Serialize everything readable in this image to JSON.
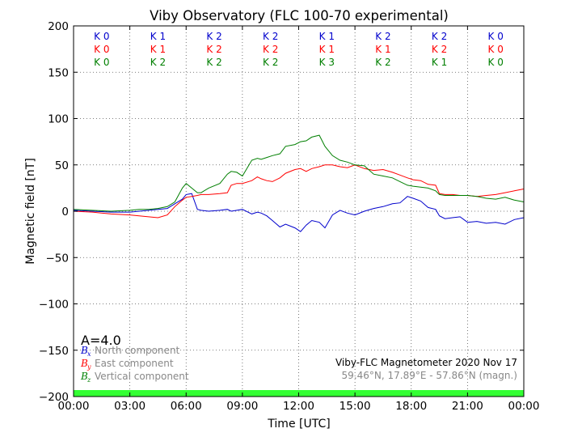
{
  "chart_data": {
    "type": "line",
    "title": "Viby Observatory (FLC 100-70 experimental)",
    "xlabel": "Time [UTC]",
    "ylabel": "Magnetic field [nT]",
    "xlim": [
      0,
      24
    ],
    "ylim": [
      -200,
      200
    ],
    "grid": true,
    "x_ticks": [
      0,
      3,
      6,
      9,
      12,
      15,
      18,
      21,
      24
    ],
    "x_tick_labels": [
      "00:00",
      "03:00",
      "06:00",
      "09:00",
      "12:00",
      "15:00",
      "18:00",
      "21:00",
      "00:00"
    ],
    "y_ticks": [
      200,
      150,
      100,
      50,
      0,
      -50,
      -100,
      -150,
      -200
    ],
    "y_tick_labels": [
      "200",
      "150",
      "100",
      "50",
      "0",
      "−50",
      "−100",
      "−150",
      "−200"
    ],
    "series": [
      {
        "name": "North component",
        "symbol": "B",
        "subscript": "x",
        "color": "#0000cc",
        "x": [
          0,
          1,
          2,
          3,
          3.5,
          4,
          4.5,
          5,
          5.4,
          5.8,
          6.0,
          6.3,
          6.6,
          6.8,
          7.2,
          7.8,
          8.2,
          8.4,
          8.7,
          9.0,
          9.5,
          9.8,
          10.0,
          10.3,
          10.6,
          11.0,
          11.3,
          11.8,
          12.1,
          12.4,
          12.7,
          13.1,
          13.4,
          13.8,
          14.2,
          14.6,
          15.0,
          15.5,
          16.0,
          16.5,
          17.0,
          17.4,
          17.8,
          18.1,
          18.5,
          18.9,
          19.3,
          19.5,
          19.8,
          20.2,
          20.6,
          21.0,
          21.5,
          22.0,
          22.5,
          23.0,
          23.5,
          24.0
        ],
        "y": [
          1,
          0,
          -1,
          -1,
          0,
          1,
          2,
          3,
          8,
          13,
          18,
          19,
          2,
          1,
          0,
          1,
          2,
          0,
          1,
          2,
          -3,
          -1,
          -2,
          -5,
          -10,
          -17,
          -14,
          -18,
          -22,
          -15,
          -10,
          -12,
          -18,
          -4,
          1,
          -2,
          -4,
          0,
          3,
          5,
          8,
          9,
          16,
          14,
          11,
          4,
          2,
          -5,
          -8,
          -7,
          -6,
          -12,
          -11,
          -13,
          -12,
          -14,
          -9,
          -7
        ]
      },
      {
        "name": "East component",
        "symbol": "B",
        "subscript": "y",
        "color": "#ff0000",
        "x": [
          0,
          1,
          2,
          3,
          3.5,
          4,
          4.5,
          5,
          5.4,
          5.8,
          6.0,
          6.3,
          6.6,
          6.8,
          7.2,
          7.8,
          8.2,
          8.4,
          8.7,
          9.0,
          9.5,
          9.8,
          10.0,
          10.3,
          10.6,
          11.0,
          11.3,
          11.8,
          12.1,
          12.4,
          12.7,
          13.1,
          13.4,
          13.8,
          14.2,
          14.6,
          15.0,
          15.5,
          16.0,
          16.5,
          17.0,
          17.4,
          17.8,
          18.1,
          18.5,
          18.9,
          19.3,
          19.5,
          19.8,
          20.2,
          20.6,
          21.0,
          21.5,
          22.0,
          22.5,
          23.0,
          23.5,
          24.0
        ],
        "y": [
          0,
          -1,
          -3,
          -4,
          -5,
          -6,
          -7,
          -4,
          5,
          12,
          15,
          16,
          17,
          18,
          18,
          19,
          20,
          28,
          30,
          30,
          33,
          37,
          35,
          33,
          32,
          36,
          41,
          45,
          46,
          43,
          46,
          48,
          50,
          50,
          48,
          47,
          50,
          46,
          44,
          45,
          42,
          39,
          36,
          34,
          33,
          29,
          28,
          19,
          18,
          18,
          17,
          17,
          16,
          17,
          18,
          20,
          22,
          24
        ]
      },
      {
        "name": "Vertical component",
        "symbol": "B",
        "subscript": "z",
        "color": "#007f00",
        "x": [
          0,
          1,
          2,
          3,
          3.5,
          4,
          4.5,
          5,
          5.4,
          5.8,
          6.0,
          6.3,
          6.6,
          6.8,
          7.2,
          7.8,
          8.2,
          8.4,
          8.7,
          9.0,
          9.5,
          9.8,
          10.0,
          10.3,
          10.6,
          11.0,
          11.3,
          11.8,
          12.1,
          12.4,
          12.7,
          13.1,
          13.4,
          13.8,
          14.2,
          14.6,
          15.0,
          15.5,
          16.0,
          16.5,
          17.0,
          17.4,
          17.8,
          18.1,
          18.5,
          18.9,
          19.3,
          19.5,
          19.8,
          20.2,
          20.6,
          21.0,
          21.5,
          22.0,
          22.5,
          23.0,
          23.5,
          24.0
        ],
        "y": [
          2,
          1,
          0,
          1,
          2,
          2,
          3,
          5,
          10,
          25,
          30,
          25,
          20,
          20,
          25,
          30,
          40,
          43,
          42,
          38,
          55,
          57,
          56,
          58,
          60,
          62,
          70,
          72,
          75,
          76,
          80,
          82,
          70,
          60,
          55,
          53,
          50,
          49,
          40,
          38,
          36,
          32,
          28,
          27,
          26,
          25,
          22,
          18,
          17,
          17,
          17,
          17,
          16,
          14,
          13,
          15,
          12,
          10
        ]
      }
    ],
    "k_index_rows": [
      {
        "color": "#0000cc",
        "labels": [
          "K 0",
          "K 1",
          "K 2",
          "K 2",
          "K 1",
          "K 2",
          "K 2",
          "K 0"
        ]
      },
      {
        "color": "#ff0000",
        "labels": [
          "K 0",
          "K 1",
          "K 2",
          "K 2",
          "K 1",
          "K 1",
          "K 2",
          "K 0"
        ]
      },
      {
        "color": "#007f00",
        "labels": [
          "K 0",
          "K 2",
          "K 2",
          "K 2",
          "K 3",
          "K 2",
          "K 1",
          "K 0"
        ]
      }
    ],
    "a_index": "A=4.0",
    "info_line1": "Viby-FLC Magnetometer 2020 Nov 17",
    "info_line2": "59.46°N, 17.89°E - 57.86°N (magn.)",
    "activity_bar_color": "#33ff33",
    "legend_position": "bottom-left"
  }
}
